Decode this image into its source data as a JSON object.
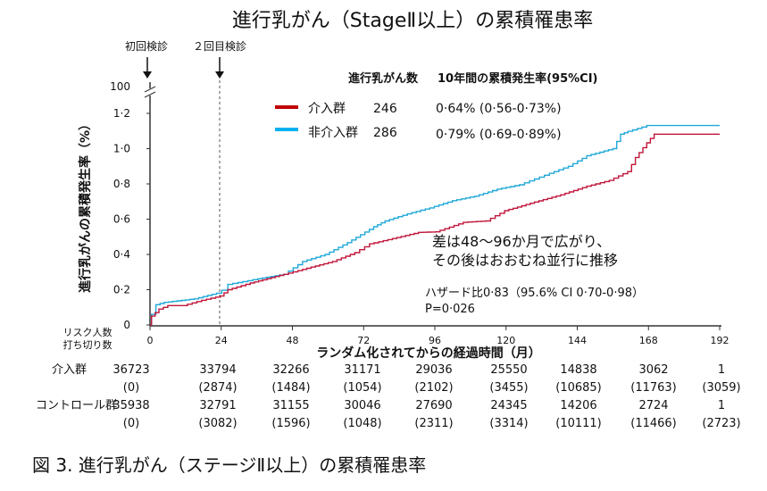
{
  "chart_data": {
    "type": "line",
    "title": "進行乳がん（StageⅡ以上）の累積罹患率",
    "xlabel": "ランダム化されてからの経過時間（月）",
    "ylabel": "進行乳がんの累積発生率（%）",
    "xlim": [
      0,
      192
    ],
    "ylim": [
      0,
      1.2
    ],
    "xticks": [
      "0",
      "24",
      "48",
      "72",
      "96",
      "120",
      "144",
      "168",
      "192"
    ],
    "yticks": [
      "0",
      "0·2",
      "0·4",
      "0·6",
      "0·8",
      "1·0",
      "1·2"
    ],
    "ybreak_label": "100",
    "screening_markers": [
      {
        "label": "初回検診",
        "month": 0
      },
      {
        "label": "２回目検診",
        "month": 24
      }
    ],
    "legend_header": {
      "count": "進行乳がん数",
      "rate": "10年間の累積発生率(95%CI)"
    },
    "series": [
      {
        "name": "介入群",
        "color": "#c0163a",
        "count": "246",
        "rate": "0·64% (0·56-0·73%)",
        "legend_color": "#c00000",
        "x": [
          0,
          0.5,
          3,
          6,
          11,
          17.4,
          23.7,
          26.2,
          33.8,
          45.1,
          51.4,
          61.5,
          69,
          74,
          81.7,
          90.5,
          96.2,
          105.6,
          113.2,
          119.5,
          129.6,
          138.4,
          147.2,
          154.8,
          161,
          163.6,
          167.4,
          169.9,
          192
        ],
        "y": [
          0,
          0.05,
          0.09,
          0.11,
          0.11,
          0.14,
          0.164,
          0.2,
          0.238,
          0.287,
          0.315,
          0.36,
          0.41,
          0.46,
          0.49,
          0.525,
          0.528,
          0.582,
          0.59,
          0.648,
          0.697,
          0.738,
          0.787,
          0.82,
          0.87,
          0.95,
          1.033,
          1.082,
          1.082
        ]
      },
      {
        "name": "非介入群",
        "color": "#1fa8d8",
        "count": "286",
        "rate": "0·79% (0·69-0·89%)",
        "legend_color": "#00b0f0",
        "x": [
          0,
          0.5,
          2,
          4.8,
          14.9,
          22.4,
          24.2,
          26.2,
          31.3,
          36.3,
          45.1,
          51.4,
          59,
          66.5,
          75.4,
          79.2,
          86.7,
          94.3,
          101.9,
          109.4,
          117,
          124.5,
          129.6,
          134.6,
          141,
          147.2,
          156,
          158.6,
          161.1,
          167.4,
          192
        ],
        "y": [
          0,
          0.06,
          0.115,
          0.128,
          0.148,
          0.18,
          0.197,
          0.23,
          0.246,
          0.262,
          0.287,
          0.36,
          0.4,
          0.467,
          0.557,
          0.59,
          0.63,
          0.664,
          0.705,
          0.73,
          0.77,
          0.795,
          0.828,
          0.86,
          0.9,
          0.96,
          1.0,
          1.082,
          1.098,
          1.131,
          1.131
        ]
      }
    ],
    "annotations": [
      "差は48〜96か月で広がり、",
      "その後はおおむね並行に推移",
      "ハザード比0·83（95.6% CI 0·70-0·98）",
      "P=0·026"
    ]
  },
  "risk_table": {
    "label_at_risk": "リスク人数",
    "label_censored": "打ち切り数",
    "rows": [
      {
        "group": "介入群",
        "at_risk": [
          "36723",
          "33794",
          "32266",
          "31171",
          "29036",
          "25550",
          "14838",
          "3062",
          "1"
        ],
        "censored": [
          "(0)",
          "(2874)",
          "(1484)",
          "(1054)",
          "(2102)",
          "(3455)",
          "(10685)",
          "(11763)",
          "(3059)"
        ]
      },
      {
        "group": "コントロール群",
        "at_risk": [
          "35938",
          "32791",
          "31155",
          "30046",
          "27690",
          "24345",
          "14206",
          "2724",
          "1"
        ],
        "censored": [
          "(0)",
          "(3082)",
          "(1596)",
          "(1048)",
          "(2311)",
          "(3314)",
          "(10111)",
          "(11466)",
          "(2723)"
        ]
      }
    ]
  },
  "caption": "図 3. 進行乳がん（ステージⅡ以上）の累積罹患率"
}
